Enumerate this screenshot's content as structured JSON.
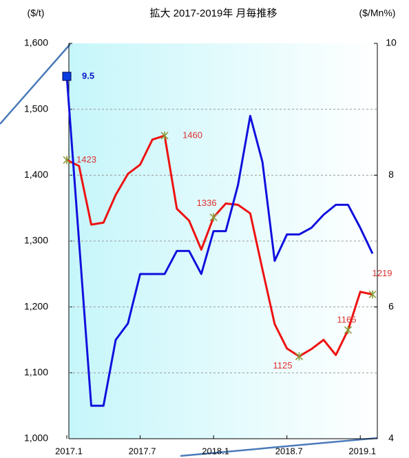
{
  "chart_data": {
    "type": "line",
    "title": "拡大  2017-2019年  月毎推移",
    "y_label": "($/t)",
    "y2_label": "($/Mn%)",
    "categories": [
      "2017.1",
      null,
      null,
      null,
      null,
      null,
      "2017.7",
      null,
      null,
      null,
      null,
      null,
      "2018.1",
      null,
      null,
      null,
      null,
      null,
      "2018.7",
      null,
      null,
      null,
      null,
      null,
      "2019.1",
      null
    ],
    "ylim": [
      1000,
      1600
    ],
    "yticks": [
      {
        "value": 1000,
        "label": "1,000"
      },
      {
        "value": 1100,
        "label": "1,100"
      },
      {
        "value": 1200,
        "label": "1,200"
      },
      {
        "value": 1300,
        "label": "1,300"
      },
      {
        "value": 1400,
        "label": "1,400"
      },
      {
        "value": 1500,
        "label": "1,500"
      },
      {
        "value": 1600,
        "label": "1,600"
      }
    ],
    "y2lim": [
      4,
      10
    ],
    "y2ticks": [
      4,
      6,
      8,
      10
    ],
    "grid": true,
    "series": [
      {
        "color": "#ee1111",
        "marker": "x",
        "marker_color": "#8a9a3a",
        "label_color": "#e03030",
        "values": [
          1423,
          1414,
          1325,
          1328,
          1370,
          1402,
          1416,
          1454,
          1460,
          1349,
          1331,
          1287,
          1336,
          1357,
          1355,
          1342,
          1257,
          1174,
          1137,
          1125,
          1136,
          1150,
          1127,
          1165,
          1223,
          1219
        ],
        "value_labels": [
          "1423",
          null,
          null,
          null,
          null,
          null,
          null,
          null,
          "1460",
          null,
          null,
          null,
          "1336",
          null,
          null,
          null,
          null,
          null,
          null,
          "1125",
          null,
          null,
          null,
          "1165",
          null,
          "1219"
        ]
      },
      {
        "color": "#1010dd",
        "axis": "y2",
        "marker": "square",
        "marker_color": "#0a3de0",
        "label_color": "#0a14c8",
        "values": [
          9.5,
          7.0,
          4.5,
          4.5,
          5.5,
          5.75,
          6.5,
          6.5,
          6.5,
          6.85,
          6.85,
          6.5,
          7.15,
          7.15,
          7.85,
          8.9,
          8.2,
          6.7,
          7.1,
          7.1,
          7.2,
          7.4,
          7.55,
          7.55,
          7.2,
          6.81
        ],
        "value_labels": [
          "9.5",
          null,
          null,
          null,
          null,
          null,
          null,
          null,
          null,
          null,
          null,
          null,
          null,
          null,
          null,
          null,
          null,
          null,
          null,
          null,
          null,
          null,
          null,
          null,
          null,
          null
        ]
      }
    ]
  }
}
